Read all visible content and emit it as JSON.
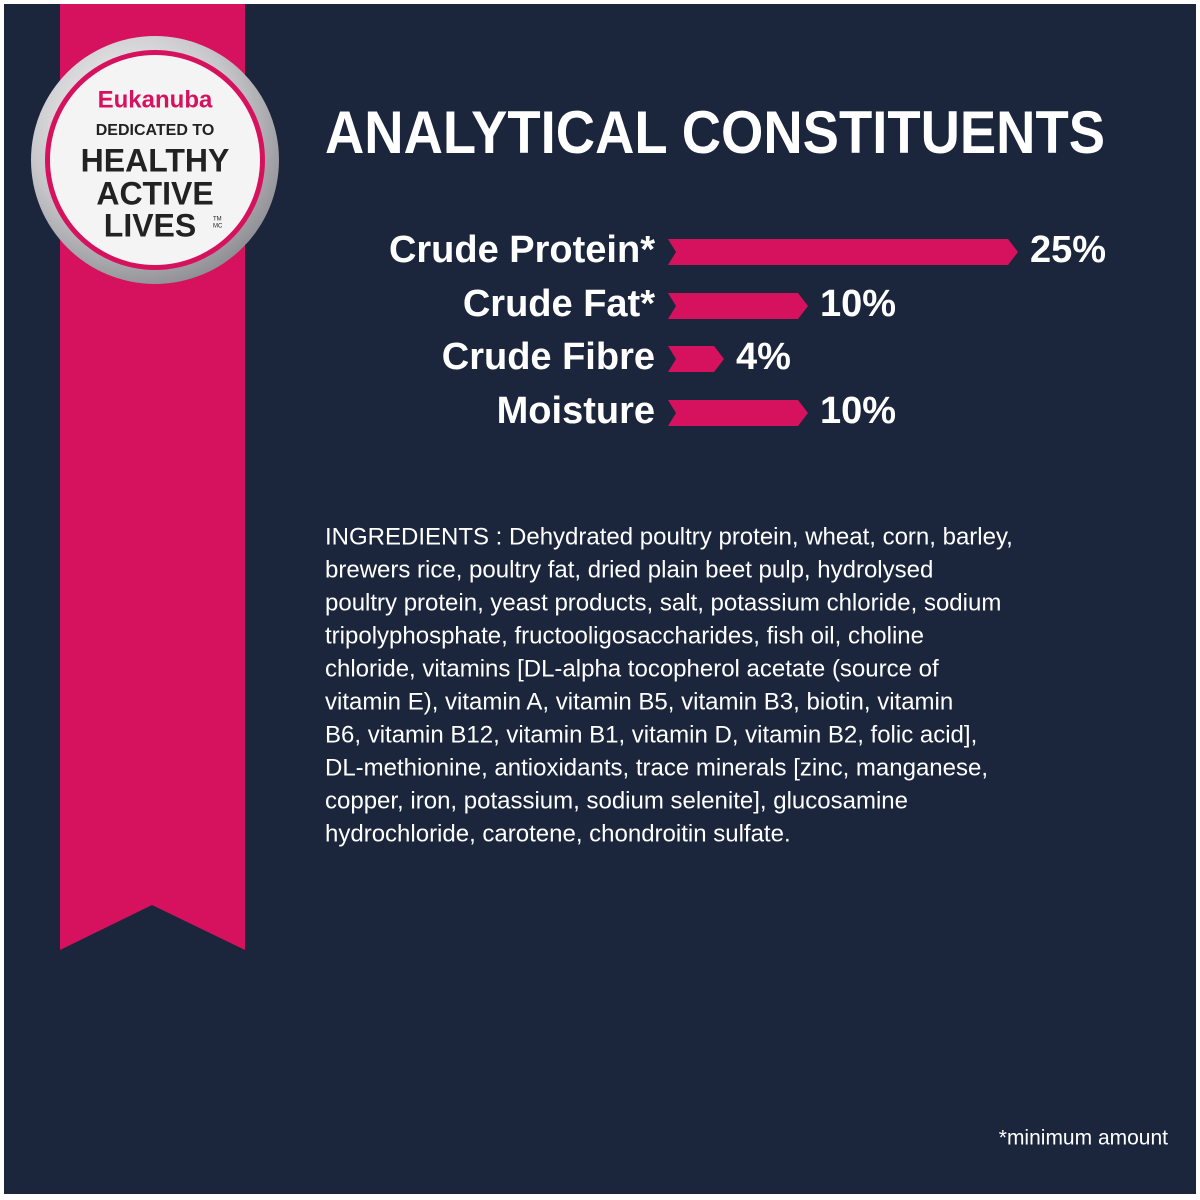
{
  "badge": {
    "brand": "Eukanuba",
    "line1": "DEDICATED TO",
    "line2": "HEALTHY",
    "line3": "ACTIVE",
    "line4": "LIVES",
    "trademark": [
      "TM",
      "MC"
    ]
  },
  "chart_data": {
    "type": "bar",
    "title": "ANALYTICAL CONSTITUENTS",
    "categories": [
      "Crude Protein*",
      "Crude Fat*",
      "Crude Fibre",
      "Moisture"
    ],
    "values": [
      25,
      10,
      4,
      10
    ],
    "value_labels": [
      "25%",
      "10%",
      "4%",
      "10%"
    ],
    "color": "#d6125f"
  },
  "ingredients": {
    "lines": [
      "INGREDIENTS : Dehydrated poultry protein, wheat, corn, barley,",
      "brewers rice, poultry fat, dried plain beet pulp, hydrolysed",
      "poultry protein, yeast products, salt, potassium chloride, sodium",
      "tripolyphosphate, fructooligosaccharides, fish oil, choline",
      "chloride, vitamins [DL-alpha tocopherol acetate (source of",
      "vitamin E), vitamin A, vitamin B5, vitamin B3, biotin, vitamin",
      "B6, vitamin B12, vitamin B1, vitamin D, vitamin B2, folic acid],",
      "DL-methionine, antioxidants, trace minerals [zinc, manganese,",
      "copper, iron, potassium, sodium selenite], glucosamine",
      "hydrochloride, carotene, chondroitin sulfate."
    ]
  },
  "footnote": "*minimum amount"
}
